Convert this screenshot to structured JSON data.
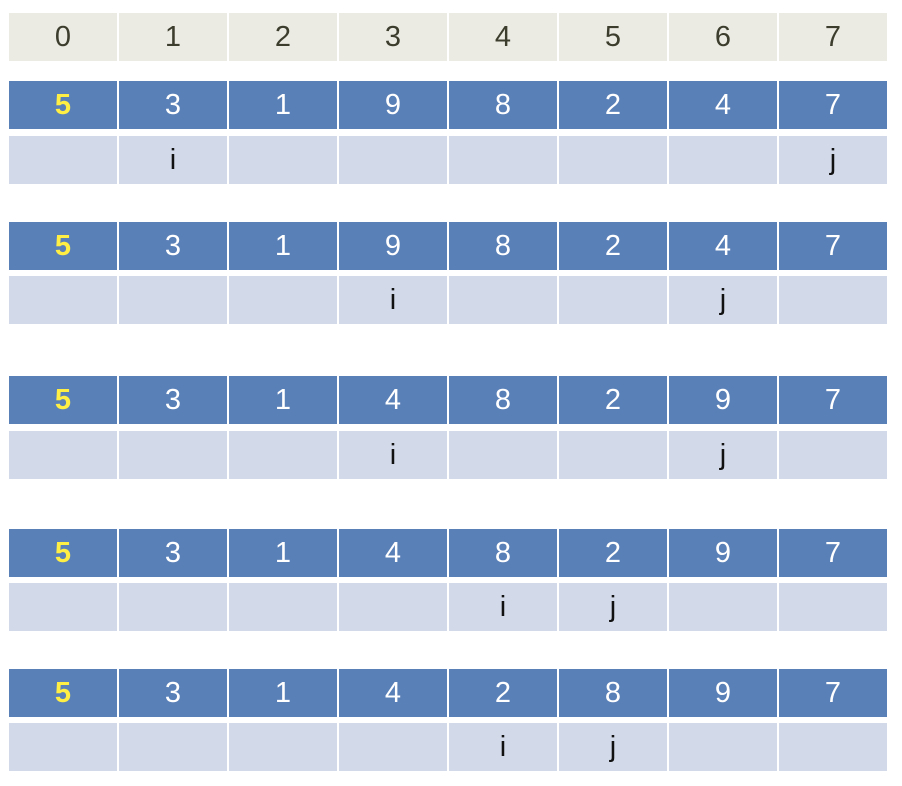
{
  "header": {
    "indices": [
      "0",
      "1",
      "2",
      "3",
      "4",
      "5",
      "6",
      "7"
    ]
  },
  "steps": [
    {
      "values": [
        "5",
        "3",
        "1",
        "9",
        "8",
        "2",
        "4",
        "7"
      ],
      "pointers": [
        "",
        "i",
        "",
        "",
        "",
        "",
        "",
        "j"
      ]
    },
    {
      "values": [
        "5",
        "3",
        "1",
        "9",
        "8",
        "2",
        "4",
        "7"
      ],
      "pointers": [
        "",
        "",
        "",
        "i",
        "",
        "",
        "j",
        ""
      ]
    },
    {
      "values": [
        "5",
        "3",
        "1",
        "4",
        "8",
        "2",
        "9",
        "7"
      ],
      "pointers": [
        "",
        "",
        "",
        "i",
        "",
        "",
        "j",
        ""
      ]
    },
    {
      "values": [
        "5",
        "3",
        "1",
        "4",
        "8",
        "2",
        "9",
        "7"
      ],
      "pointers": [
        "",
        "",
        "",
        "",
        "i",
        "j",
        "",
        ""
      ]
    },
    {
      "values": [
        "5",
        "3",
        "1",
        "4",
        "2",
        "8",
        "9",
        "7"
      ],
      "pointers": [
        "",
        "",
        "",
        "",
        "i",
        "j",
        "",
        ""
      ]
    }
  ],
  "colors": {
    "index_bg": "#ecebe3",
    "value_bg": "#5a80b8",
    "pointer_bg": "#d2d9e8",
    "pivot_text": "#ffee44"
  }
}
